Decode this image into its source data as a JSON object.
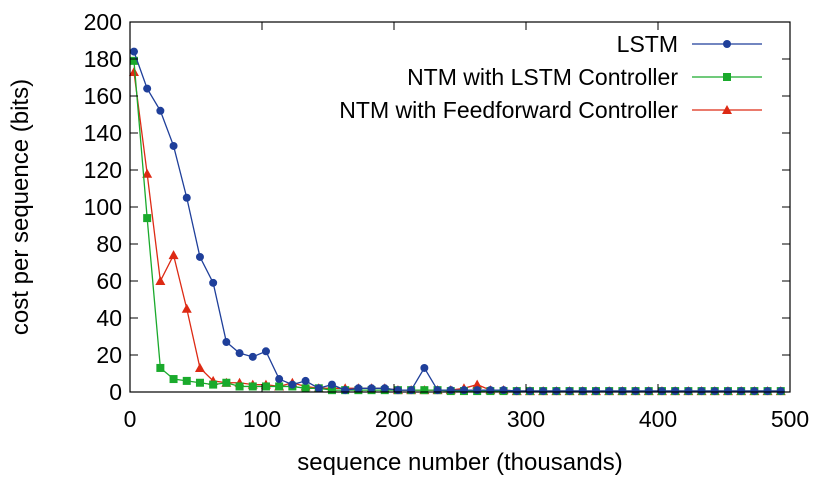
{
  "chart_data": {
    "type": "line",
    "xlabel": "sequence number (thousands)",
    "ylabel": "cost per sequence (bits)",
    "xlim": [
      0,
      500
    ],
    "ylim": [
      0,
      200
    ],
    "x_ticks": [
      0,
      100,
      200,
      300,
      400,
      500
    ],
    "y_ticks": [
      0,
      20,
      40,
      60,
      80,
      100,
      120,
      140,
      160,
      180,
      200
    ],
    "grid": false,
    "legend_position": "top-right",
    "x": [
      3,
      13,
      23,
      33,
      43,
      53,
      63,
      73,
      83,
      93,
      103,
      113,
      123,
      133,
      143,
      153,
      163,
      173,
      183,
      193,
      203,
      213,
      223,
      233,
      243,
      253,
      263,
      273,
      283,
      293,
      303,
      313,
      323,
      333,
      343,
      353,
      363,
      373,
      383,
      393,
      403,
      413,
      423,
      433,
      443,
      453,
      463,
      473,
      483,
      493
    ],
    "series": [
      {
        "name": "LSTM",
        "color": "#1f3f9a",
        "marker": "circle",
        "values": [
          184,
          164,
          152,
          133,
          105,
          73,
          59,
          27,
          21,
          19,
          22,
          7,
          4,
          6,
          2,
          4,
          1,
          2,
          2,
          2,
          1,
          1,
          13,
          1,
          1,
          1,
          1,
          1,
          1,
          0.5,
          0.5,
          0.5,
          0.5,
          0.5,
          0.5,
          0.5,
          0.5,
          0.5,
          0.5,
          0.5,
          0.5,
          0.5,
          0.5,
          0.5,
          0.5,
          0.5,
          0.5,
          0.5,
          0.5,
          0.5
        ]
      },
      {
        "name": "NTM with LSTM Controller",
        "color": "#1aaa2c",
        "marker": "square",
        "values": [
          179,
          94,
          13,
          7,
          6,
          5,
          4,
          5,
          3,
          3,
          3,
          3,
          3,
          2,
          2,
          1,
          1,
          1,
          1,
          1,
          1,
          1,
          1,
          1,
          0.5,
          0.5,
          0.5,
          0.5,
          0.5,
          0.5,
          0.5,
          0.5,
          0.5,
          0.5,
          0.5,
          0.5,
          0.5,
          0.5,
          0.5,
          0.5,
          0.5,
          0.5,
          0.5,
          0.5,
          0.5,
          0.5,
          0.5,
          0.5,
          0.5,
          0.5
        ]
      },
      {
        "name": "NTM with Feedforward Controller",
        "color": "#dd2a14",
        "marker": "triangle",
        "values": [
          173,
          118,
          60,
          74,
          45,
          13,
          6,
          5,
          5,
          4,
          4,
          3,
          5,
          3,
          2,
          2,
          2,
          2,
          2,
          2,
          1,
          1,
          1,
          1,
          1,
          2,
          4,
          1,
          1,
          0.5,
          0.5,
          0.5,
          0.5,
          0.5,
          0.5,
          0.5,
          0.5,
          0.5,
          0.5,
          0.5,
          0.5,
          0.5,
          0.5,
          0.5,
          0.5,
          0.5,
          0.5,
          0.5,
          0.5,
          0.5
        ]
      }
    ]
  }
}
